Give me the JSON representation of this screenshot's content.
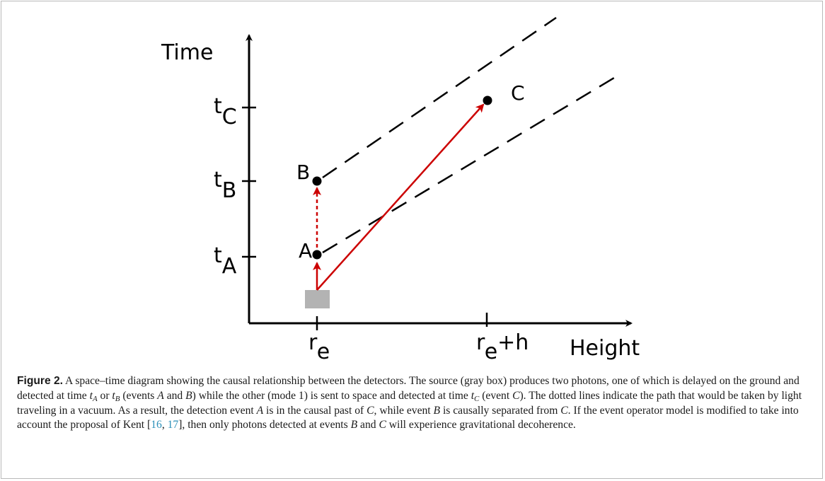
{
  "diagram": {
    "axis_y_label": "Time",
    "axis_x_label": "Height",
    "ticks_y": [
      {
        "base": "t",
        "sub": "C"
      },
      {
        "base": "t",
        "sub": "B"
      },
      {
        "base": "t",
        "sub": "A"
      }
    ],
    "ticks_x": [
      {
        "base": "r",
        "sub": "e",
        "after": ""
      },
      {
        "base": "r",
        "sub": "e",
        "after": "+h"
      }
    ],
    "events": [
      "A",
      "B",
      "C"
    ],
    "colors": {
      "photon_path": "#cc0000",
      "source_box": "#b3b3b3",
      "axes": "#000000"
    }
  },
  "caption": {
    "figure_label": "Figure 2.",
    "p1": "A space–time diagram showing the causal relationship between the detectors. The source (gray box) produces two photons, one of which is delayed on the ground and detected at time ",
    "tA_base": "t",
    "tA_sub": "A",
    "p2": " or ",
    "tB_base": "t",
    "tB_sub": "B",
    "p3": " (events ",
    "evA": "A",
    "p4": " and ",
    "evB": "B",
    "p5": ") while the other (mode 1) is sent to space and detected at time ",
    "tC_base": "t",
    "tC_sub": "C",
    "p6": " (event ",
    "evC": "C",
    "p7": "). The dotted lines indicate the path that would be taken by light traveling in a vacuum. As a result, the detection event ",
    "evA2": "A",
    "p8": " is in the causal past of ",
    "evC2": "C",
    "p9": ", while event ",
    "evB2": "B",
    "p10": " is causally separated from ",
    "evC3": "C",
    "p11": ". If the event operator model is modified to take into account the proposal of Kent [",
    "ref1": "16",
    "p12": ", ",
    "ref2": "17",
    "p13": "], then only photons detected at events ",
    "evB3": "B",
    "p14": " and ",
    "evC4": "C",
    "p15": " will experience gravitational decoherence."
  }
}
